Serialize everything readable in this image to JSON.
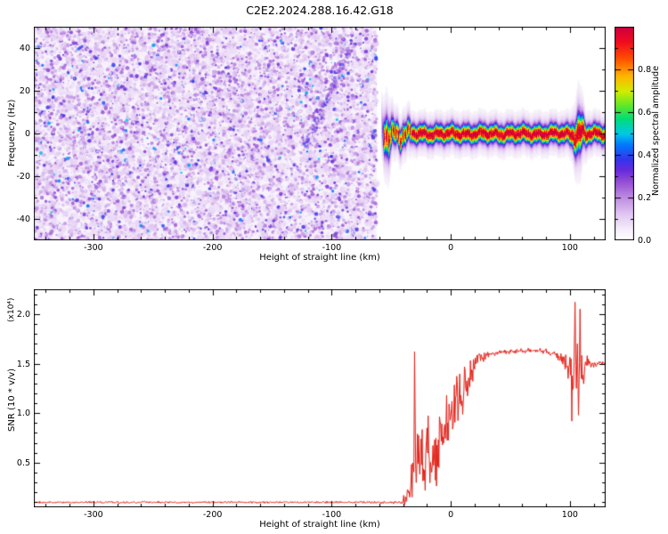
{
  "title": "C2E2.2024.288.16.42.G18",
  "chart_data": [
    {
      "type": "heatmap",
      "title": "C2E2.2024.288.16.42.G18",
      "xlabel": "Height of straight line (km)",
      "ylabel": "Frequency (Hz)",
      "xlim": [
        -350,
        130
      ],
      "ylim": [
        -50,
        50
      ],
      "xticks": [
        -300,
        -200,
        -100,
        0,
        100
      ],
      "yticks": [
        -40,
        -20,
        0,
        20,
        40
      ],
      "x_minor_step": 20,
      "y_minor_step": 10,
      "colorbar": {
        "label": "Normalized spectral amplitude",
        "ticks": [
          "0.0",
          "0.2",
          "0.4",
          "0.6",
          "0.8"
        ],
        "tick_values": [
          0,
          0.2,
          0.4,
          0.6,
          0.8
        ],
        "lim": [
          0,
          1
        ]
      },
      "colormap_stops": [
        [
          0.0,
          255,
          255,
          255
        ],
        [
          0.05,
          246,
          239,
          250
        ],
        [
          0.12,
          226,
          201,
          243
        ],
        [
          0.2,
          191,
          141,
          226
        ],
        [
          0.27,
          152,
          82,
          212
        ],
        [
          0.33,
          103,
          42,
          221
        ],
        [
          0.38,
          52,
          52,
          236
        ],
        [
          0.45,
          0,
          122,
          255
        ],
        [
          0.5,
          0,
          201,
          231
        ],
        [
          0.57,
          0,
          221,
          121
        ],
        [
          0.63,
          92,
          231,
          41
        ],
        [
          0.7,
          211,
          236,
          0
        ],
        [
          0.77,
          255,
          181,
          0
        ],
        [
          0.85,
          255,
          81,
          0
        ],
        [
          0.93,
          241,
          11,
          31
        ],
        [
          1.0,
          206,
          0,
          61
        ]
      ],
      "noise_field": {
        "x_range": [
          -350,
          -62
        ],
        "value_range": [
          0.04,
          0.45
        ],
        "background": "#f7f2fc",
        "description": "random purple speckle noise before echo onset"
      },
      "streak": {
        "x_range": [
          -122,
          -84
        ],
        "freq_range": [
          -6,
          40
        ],
        "value": 0.3
      },
      "echo_band": {
        "x_range": [
          -58,
          130
        ],
        "center_freq_hz": 0,
        "peak_amplitude": 0.97,
        "core_sigma_hz": 2.5,
        "wiggle_hz_left": 4.5,
        "wiggle_hz_main": 1.4,
        "start_blob_km": -54,
        "bright_blob_km": 107
      }
    },
    {
      "type": "line",
      "xlabel": "Height of straight line (km)",
      "ylabel": "SNR (10 * v/v)",
      "ylabel_scale": "(x10⁴)",
      "xlim": [
        -350,
        130
      ],
      "ylim": [
        0.05,
        2.25
      ],
      "xticks": [
        -300,
        -200,
        -100,
        0,
        100
      ],
      "ytick_labels": [
        "0.5",
        "1.0",
        "1.5",
        "2.0"
      ],
      "ytick_values": [
        0.5,
        1.0,
        1.5,
        2.0
      ],
      "x_minor_step": 20,
      "y_minor_step": 0.1,
      "series": [
        {
          "name": "SNR",
          "color": "#e32219",
          "envelope": {
            "x": [
              -350,
              -200,
              -100,
              -60,
              -45,
              -38,
              -34,
              -30,
              -27,
              -24,
              -20,
              -16,
              -12,
              -8,
              -4,
              0,
              4,
              8,
              12,
              16,
              20,
              26,
              34,
              45,
              60,
              75,
              88,
              95,
              100,
              103,
              107,
              111,
              114,
              120,
              130
            ],
            "mean": [
              0.1,
              0.1,
              0.1,
              0.1,
              0.1,
              0.12,
              0.3,
              0.45,
              0.5,
              0.55,
              0.6,
              0.65,
              0.7,
              0.8,
              0.9,
              1.0,
              1.1,
              1.2,
              1.3,
              1.42,
              1.5,
              1.56,
              1.6,
              1.62,
              1.63,
              1.63,
              1.6,
              1.55,
              1.42,
              1.4,
              1.45,
              1.5,
              1.52,
              1.5,
              1.5
            ],
            "spread": [
              0.012,
              0.012,
              0.012,
              0.015,
              0.02,
              0.08,
              0.35,
              0.5,
              0.5,
              0.5,
              0.52,
              0.5,
              0.5,
              0.5,
              0.45,
              0.42,
              0.4,
              0.35,
              0.3,
              0.22,
              0.12,
              0.06,
              0.035,
              0.03,
              0.03,
              0.03,
              0.04,
              0.1,
              0.25,
              0.3,
              0.35,
              0.3,
              0.12,
              0.04,
              0.035
            ]
          },
          "key_points": [
            {
              "x": -30.4,
              "y": 1.62
            },
            {
              "x": 101.6,
              "y": 0.92
            },
            {
              "x": 104.3,
              "y": 2.12
            },
            {
              "x": 105.4,
              "y": 1.25
            },
            {
              "x": 106.3,
              "y": 1.7
            },
            {
              "x": 107.2,
              "y": 0.98
            },
            {
              "x": 108.5,
              "y": 2.05
            },
            {
              "x": 109.6,
              "y": 1.35
            }
          ]
        }
      ]
    }
  ]
}
